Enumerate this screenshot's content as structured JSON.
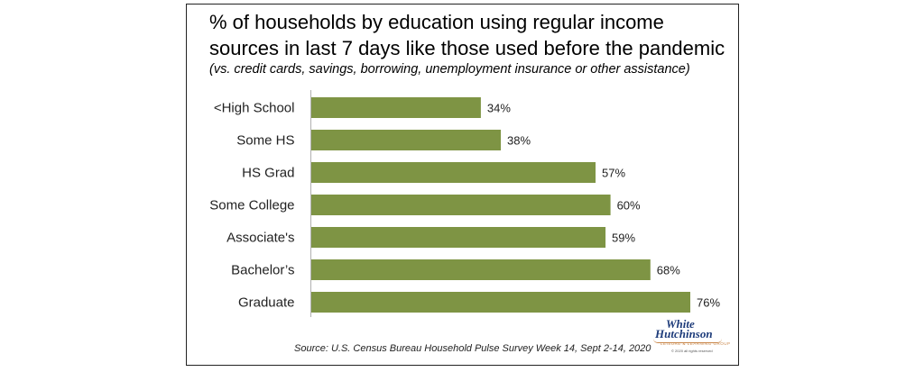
{
  "title_line1": "% of households by education using regular income",
  "title_line2": "sources in last 7 days like those used before the pandemic",
  "subtitle": "(vs. credit cards, savings, borrowing, unemployment insurance or other assistance)",
  "source": "Source: U.S. Census Bureau Household Pulse Survey Week 14, Sept 2-14, 2020",
  "logo": {
    "line1": "White",
    "line2": "Hutchinson",
    "line3": "LEISURE & LEARNING GROUP",
    "line4": "© 2020 all rights reserved"
  },
  "colors": {
    "bar": "#7e9444"
  },
  "chart_data": {
    "type": "bar",
    "orientation": "horizontal",
    "categories": [
      "<High School",
      "Some HS",
      "HS Grad",
      "Some College",
      "Associate's",
      "Bachelor’s",
      "Graduate"
    ],
    "values": [
      34,
      38,
      57,
      60,
      59,
      68,
      76
    ],
    "value_labels": [
      "34%",
      "38%",
      "57%",
      "60%",
      "59%",
      "68%",
      "76%"
    ],
    "xlim": [
      0,
      76
    ],
    "grid": false,
    "legend": "none"
  }
}
